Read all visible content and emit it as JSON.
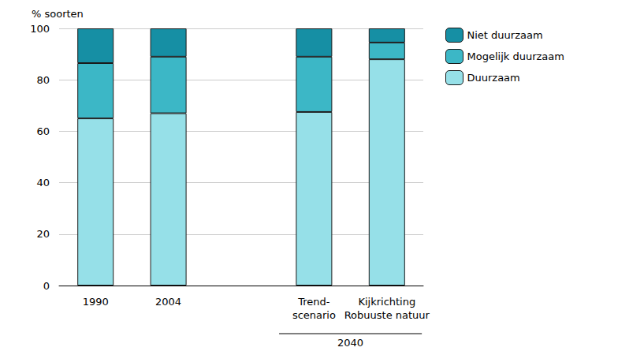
{
  "chart_data": {
    "type": "bar",
    "stacked": true,
    "y_label": "% soorten",
    "categories": [
      "1990",
      "2004",
      null,
      "Trend-\nscenario",
      "Kijkrichting\nRobuuste natuur"
    ],
    "series": [
      {
        "name": "Duurzaam",
        "color": "#96e0e8",
        "values": [
          65,
          67,
          null,
          67.5,
          88
        ]
      },
      {
        "name": "Mogelijk duurzaam",
        "color": "#3cb7c6",
        "values": [
          21.5,
          22,
          null,
          21.5,
          6.5
        ]
      },
      {
        "name": "Niet duurzaam",
        "color": "#168fa4",
        "values": [
          13.5,
          11,
          null,
          11,
          5.5
        ]
      }
    ],
    "ylim": [
      0,
      100
    ],
    "yticks": [
      0,
      20,
      40,
      60,
      80,
      100
    ],
    "grid": true,
    "legend": "top-right",
    "annotations": [
      {
        "text": "2040",
        "categories": [
          "Trend-\nscenario",
          "Kijkrichting\nRobuuste natuur"
        ]
      }
    ]
  }
}
